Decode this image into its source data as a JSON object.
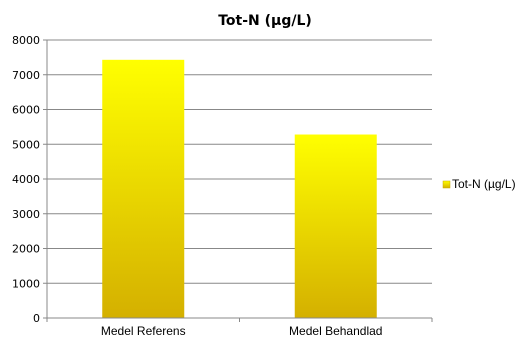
{
  "chart_data": {
    "type": "bar",
    "title": "Tot-N (µg/L)",
    "categories": [
      "Medel Referens",
      "Medel Behandlad"
    ],
    "series": [
      {
        "name": "Tot-N (µg/L)",
        "values": [
          7430,
          5280
        ]
      }
    ],
    "ylim": [
      0,
      8000
    ],
    "yticks": [
      0,
      1000,
      2000,
      3000,
      4000,
      5000,
      6000,
      7000,
      8000
    ],
    "grid": true,
    "legend": "right",
    "colors": {
      "bar_top": "#ffff00",
      "bar_bottom": "#d4b000",
      "grid": "#888888",
      "axis": "#888888"
    }
  }
}
